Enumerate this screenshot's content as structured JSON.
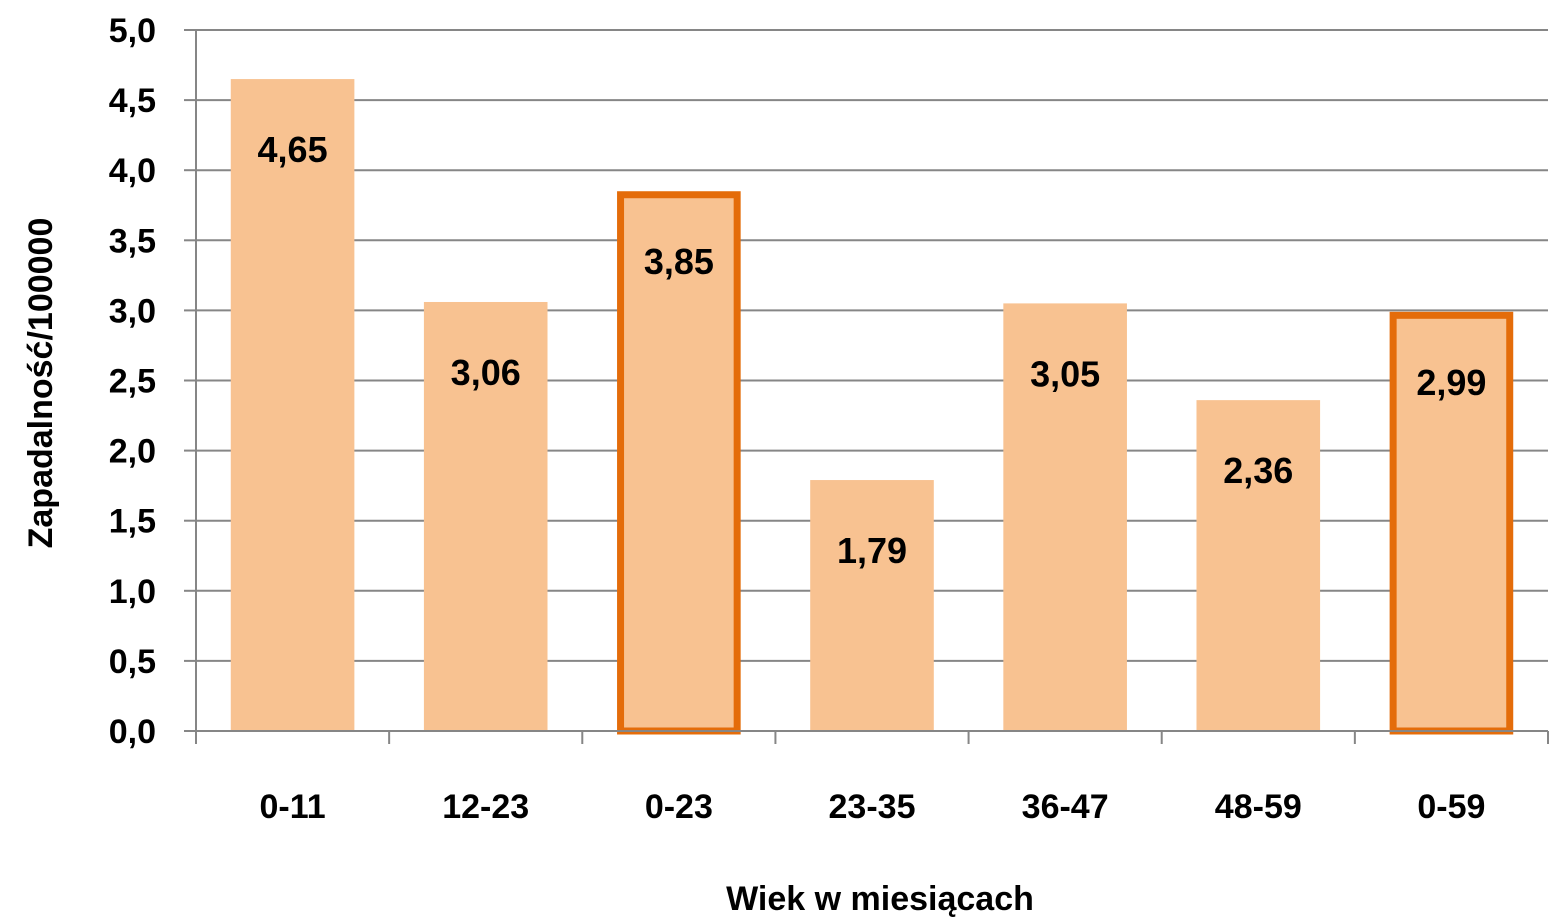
{
  "chart_data": {
    "type": "bar",
    "categories": [
      "0-11",
      "12-23",
      "0-23",
      "23-35",
      "36-47",
      "48-59",
      "0-59"
    ],
    "values": [
      4.65,
      3.06,
      3.85,
      1.79,
      3.05,
      2.36,
      2.99
    ],
    "data_labels": [
      "4,65",
      "3,06",
      "3,85",
      "1,79",
      "3,05",
      "2,36",
      "2,99"
    ],
    "highlighted": [
      false,
      false,
      true,
      false,
      false,
      false,
      true
    ],
    "xlabel": "Wiek w miesiącach",
    "ylabel": "Zapadalność/100000",
    "ylim": [
      0,
      5
    ],
    "yticks": [
      0,
      0.5,
      1,
      1.5,
      2,
      2.5,
      3,
      3.5,
      4,
      4.5,
      5
    ],
    "ytick_labels": [
      "0,0",
      "0,5",
      "1,0",
      "1,5",
      "2,0",
      "2,5",
      "3,0",
      "3,5",
      "4,0",
      "4,5",
      "5,0"
    ],
    "grid": true,
    "colors": {
      "bar_fill": "#F8C291",
      "highlight_border": "#E46C0A",
      "grid": "#868686",
      "axis": "#868686"
    }
  }
}
